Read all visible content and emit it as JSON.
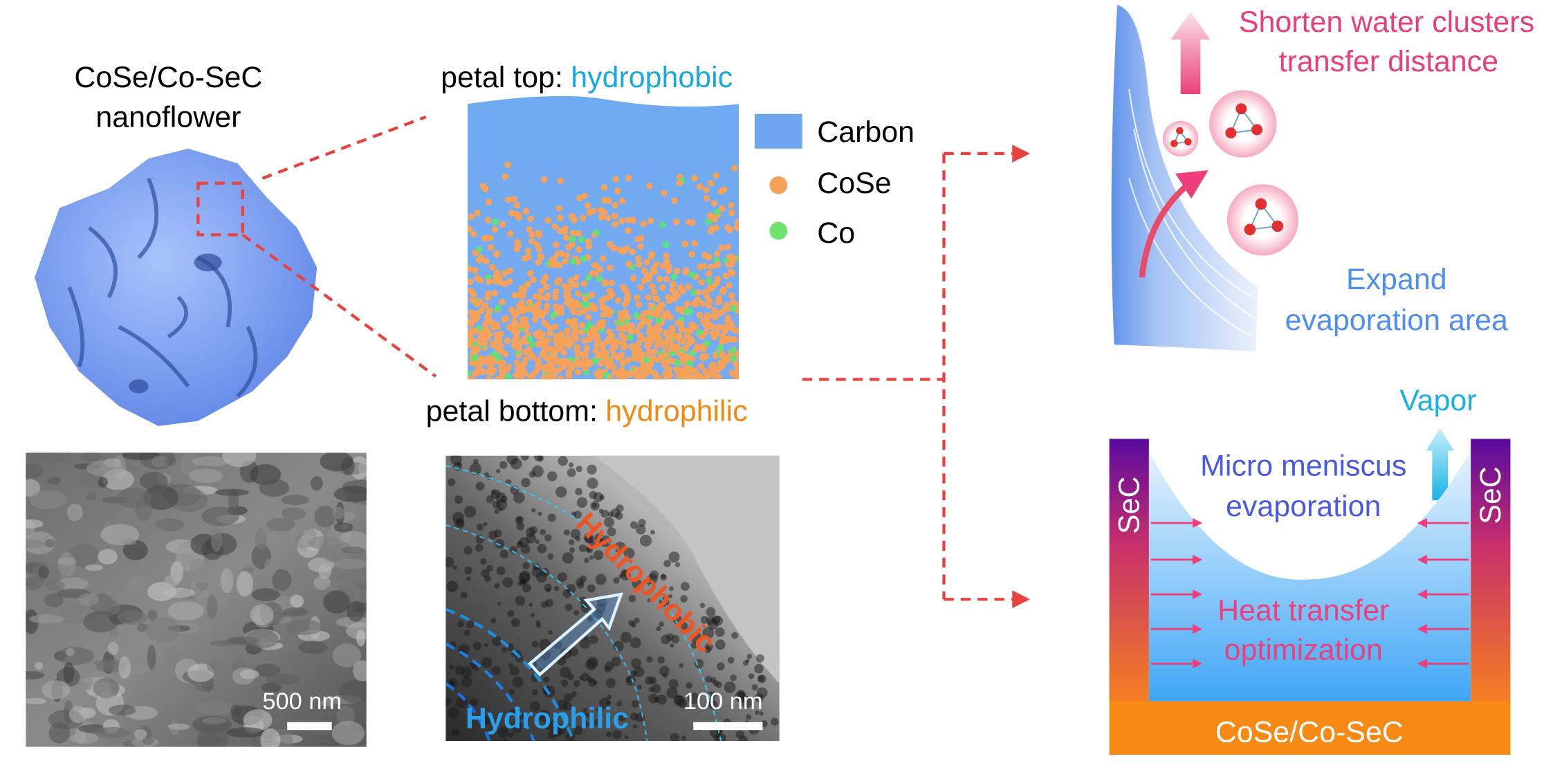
{
  "nanoflower": {
    "title_lines": [
      "CoSe/Co-SeC",
      "nanoflower"
    ]
  },
  "petal": {
    "top_label": "petal top:",
    "top_property": "hydrophobic",
    "bottom_label": "petal bottom:",
    "bottom_property": "hydrophilic"
  },
  "legend": {
    "items": [
      "Carbon",
      "CoSe",
      "Co"
    ]
  },
  "sem": {
    "scale_bar": "500 nm"
  },
  "tem": {
    "hydrophobic": "Hydrophobic",
    "hydrophilic": "Hydrophilic",
    "scale_bar": "100 nm"
  },
  "water_clusters": {
    "title_lines": [
      "Shorten water clusters",
      "transfer distance"
    ],
    "area_lines": [
      "Expand",
      "evaporation area"
    ]
  },
  "evaporator": {
    "vapor": "Vapor",
    "meniscus_lines": [
      "Micro meniscus",
      "evaporation"
    ],
    "wall_left": "SeC",
    "wall_right": "SeC",
    "heat_lines": [
      "Heat transfer",
      "optimization"
    ],
    "base": "CoSe/Co-SeC"
  }
}
